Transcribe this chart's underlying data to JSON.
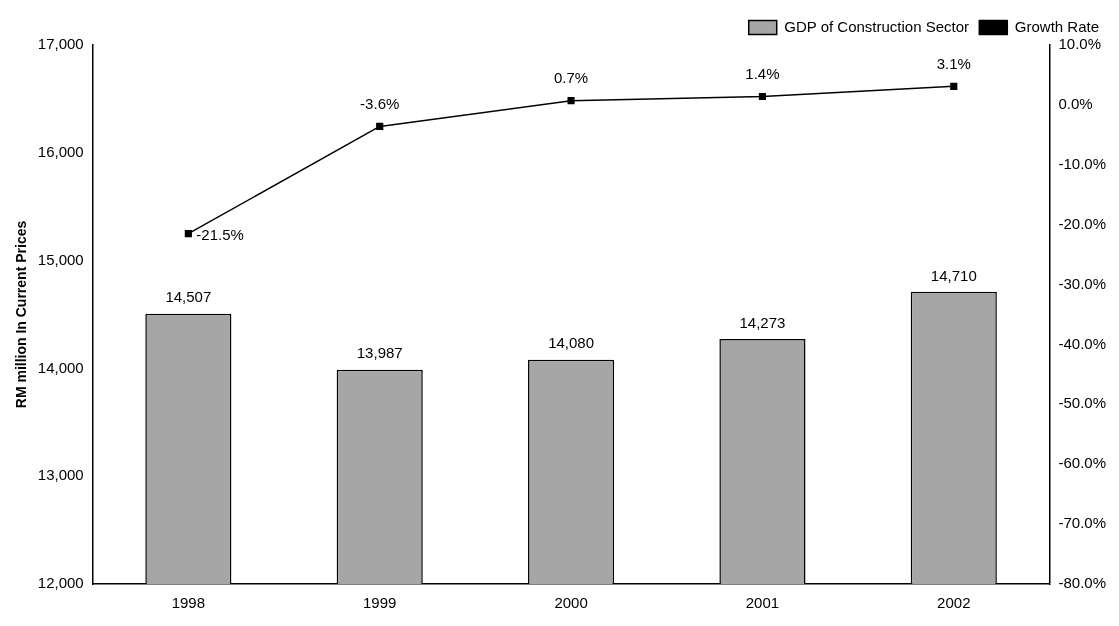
{
  "chart_data": {
    "type": "bar",
    "categories": [
      "1998",
      "1999",
      "2000",
      "2001",
      "2002"
    ],
    "ylabel": "RM million In Current Prices",
    "ylim": [
      12000,
      17000
    ],
    "yticks": [
      {
        "value": 12000,
        "label": "12,000"
      },
      {
        "value": 13000,
        "label": "13,000"
      },
      {
        "value": 14000,
        "label": "14,000"
      },
      {
        "value": 15000,
        "label": "15,000"
      },
      {
        "value": 16000,
        "label": "16,000"
      },
      {
        "value": 17000,
        "label": "17,000"
      }
    ],
    "y2lim": [
      -80,
      10
    ],
    "y2ticks": [
      {
        "value": -80,
        "label": "-80.0%"
      },
      {
        "value": -70,
        "label": "-70.0%"
      },
      {
        "value": -60,
        "label": "-60.0%"
      },
      {
        "value": -50,
        "label": "-50.0%"
      },
      {
        "value": -40,
        "label": "-40.0%"
      },
      {
        "value": -30,
        "label": "-30.0%"
      },
      {
        "value": -20,
        "label": "-20.0%"
      },
      {
        "value": -10,
        "label": "-10.0%"
      },
      {
        "value": 0,
        "label": "0.0%"
      },
      {
        "value": 10,
        "label": "10.0%"
      }
    ],
    "series": [
      {
        "name": "GDP of Construction Sector",
        "color": "#a6a6a6",
        "values": [
          14507,
          13987,
          14080,
          14273,
          14710
        ],
        "value_labels": [
          "14,507",
          "13,987",
          "14,080",
          "14,273",
          "14,710"
        ]
      },
      {
        "name": "Growth Rate",
        "type": "line",
        "axis": "y2",
        "color": "#000000",
        "marker": "square",
        "values": [
          -21.5,
          -3.6,
          0.7,
          1.4,
          3.1
        ],
        "value_labels": [
          "-21.5%",
          "-3.6%",
          "0.7%",
          "1.4%",
          "3.1%"
        ]
      }
    ],
    "legend": "top right",
    "grid": false
  }
}
